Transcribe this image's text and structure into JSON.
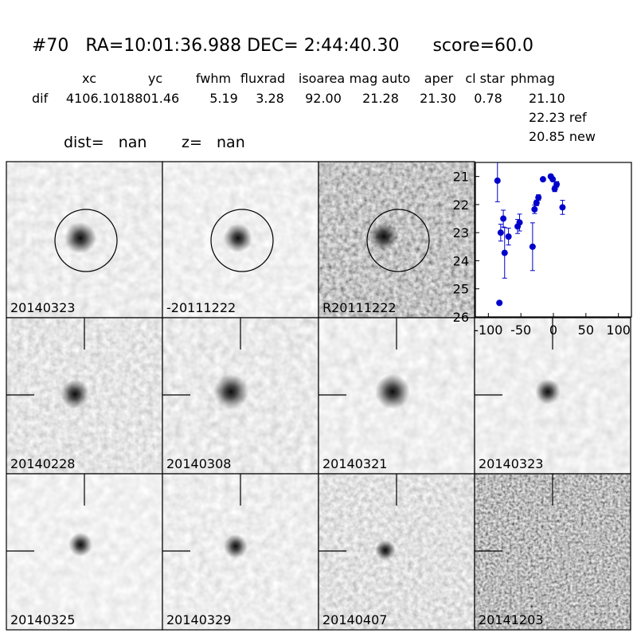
{
  "header": {
    "title": "#70   RA=10:01:36.988 DEC= 2:44:40.30      score=60.0",
    "columns": [
      "xc",
      "yc",
      "fwhm",
      "fluxrad",
      "isoarea",
      "mag auto",
      "aper",
      "cl star",
      "phmag"
    ],
    "row_label": "dif",
    "row_values": [
      "4106.10",
      "18801.46",
      "5.19",
      "3.28",
      "92.00",
      "21.28",
      "21.30",
      "0.78",
      "21.10"
    ],
    "extra_lines": [
      "22.23 ref",
      "20.85 new"
    ],
    "dist": "dist=   nan",
    "z": "z=   nan"
  },
  "panels": [
    {
      "label": "20140323"
    },
    {
      "label": "-20111222"
    },
    {
      "label": "R20111222"
    },
    {
      "label": "20140228"
    },
    {
      "label": "20140308"
    },
    {
      "label": "20140321"
    },
    {
      "label": "20140323",
      "color": "#ff0000"
    },
    {
      "label": "20140325"
    },
    {
      "label": "20140329"
    },
    {
      "label": "20140407"
    },
    {
      "label": "20141203"
    }
  ],
  "chart_data": {
    "type": "scatter",
    "color": "#0000cc",
    "x": [
      -86,
      -83,
      -81,
      -77,
      -75,
      -69,
      -55,
      -52,
      -32,
      -29,
      -26,
      -23,
      -16,
      -4,
      -1,
      2,
      5,
      14
    ],
    "y": [
      21.15,
      25.5,
      23.0,
      22.5,
      23.72,
      23.14,
      22.78,
      22.64,
      23.5,
      22.17,
      21.94,
      21.75,
      21.1,
      21.0,
      21.1,
      21.44,
      21.28,
      22.1
    ],
    "errors": [
      0.75,
      0.05,
      0.3,
      0.3,
      0.9,
      0.3,
      0.25,
      0.3,
      0.85,
      0.15,
      0.1,
      0.1,
      0.05,
      0.05,
      0.05,
      0.1,
      0.1,
      0.25
    ],
    "xlim": [
      -120,
      120
    ],
    "ylim": [
      26,
      20.5
    ],
    "xticks": [
      -100,
      -50,
      0,
      50,
      100
    ],
    "yticks": [
      21,
      22,
      23,
      24,
      25,
      26
    ]
  }
}
